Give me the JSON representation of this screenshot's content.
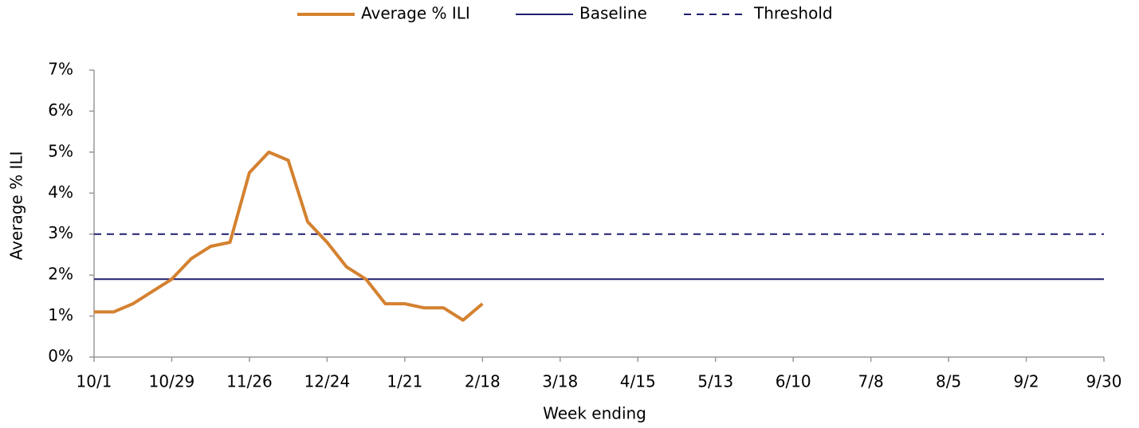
{
  "chart_data": {
    "type": "line",
    "x_label": "Week ending",
    "y_label": "Average % ILI",
    "categories": [
      "10/1",
      null,
      null,
      null,
      "10/29",
      null,
      null,
      null,
      "11/26",
      null,
      null,
      null,
      "12/24",
      null,
      null,
      null,
      "1/21",
      null,
      null,
      null,
      "2/18",
      null,
      null,
      null,
      "3/18",
      null,
      null,
      null,
      "4/15",
      null,
      null,
      null,
      "5/13",
      null,
      null,
      null,
      "6/10",
      null,
      null,
      null,
      "7/8",
      null,
      null,
      null,
      "8/5",
      null,
      null,
      null,
      "9/2",
      null,
      null,
      null,
      "9/30"
    ],
    "series": [
      {
        "name": "Average % ILI",
        "color": "#d4812f",
        "dashed": false,
        "values": [
          1.1,
          1.1,
          1.3,
          1.6,
          1.9,
          2.4,
          2.7,
          2.8,
          4.5,
          5.0,
          4.8,
          3.3,
          2.8,
          2.2,
          1.9,
          1.3,
          1.3,
          1.2,
          1.2,
          0.9,
          1.3,
          null,
          null,
          null,
          null,
          null,
          null,
          null,
          null,
          null,
          null,
          null,
          null,
          null,
          null,
          null,
          null,
          null,
          null,
          null,
          null,
          null,
          null,
          null,
          null,
          null,
          null,
          null,
          null,
          null,
          null,
          null,
          null
        ]
      },
      {
        "name": "Baseline",
        "color": "#1f1f6e",
        "dashed": false,
        "values": [
          1.9,
          1.9,
          1.9,
          1.9,
          1.9,
          1.9,
          1.9,
          1.9,
          1.9,
          1.9,
          1.9,
          1.9,
          1.9,
          1.9,
          1.9,
          1.9,
          1.9,
          1.9,
          1.9,
          1.9,
          1.9,
          1.9,
          1.9,
          1.9,
          1.9,
          1.9,
          1.9,
          1.9,
          1.9,
          1.9,
          1.9,
          1.9,
          1.9,
          1.9,
          1.9,
          1.9,
          1.9,
          1.9,
          1.9,
          1.9,
          1.9,
          1.9,
          1.9,
          1.9,
          1.9,
          1.9,
          1.9,
          1.9,
          1.9,
          1.9,
          1.9,
          1.9,
          1.9
        ]
      },
      {
        "name": "Threshold",
        "color": "#1f1f6e",
        "dashed": true,
        "values": [
          3.0,
          3.0,
          3.0,
          3.0,
          3.0,
          3.0,
          3.0,
          3.0,
          3.0,
          3.0,
          3.0,
          3.0,
          3.0,
          3.0,
          3.0,
          3.0,
          3.0,
          3.0,
          3.0,
          3.0,
          3.0,
          3.0,
          3.0,
          3.0,
          3.0,
          3.0,
          3.0,
          3.0,
          3.0,
          3.0,
          3.0,
          3.0,
          3.0,
          3.0,
          3.0,
          3.0,
          3.0,
          3.0,
          3.0,
          3.0,
          3.0,
          3.0,
          3.0,
          3.0,
          3.0,
          3.0,
          3.0,
          3.0,
          3.0,
          3.0,
          3.0,
          3.0,
          3.0
        ]
      }
    ],
    "ylim": [
      0,
      7
    ],
    "yticks": [
      {
        "value": 0,
        "label": "0%"
      },
      {
        "value": 1,
        "label": "1%"
      },
      {
        "value": 2,
        "label": "2%"
      },
      {
        "value": 3,
        "label": "3%"
      },
      {
        "value": 4,
        "label": "4%"
      },
      {
        "value": 5,
        "label": "5%"
      },
      {
        "value": 6,
        "label": "6%"
      },
      {
        "value": 7,
        "label": "7%"
      }
    ],
    "grid": false,
    "legend": "top"
  }
}
